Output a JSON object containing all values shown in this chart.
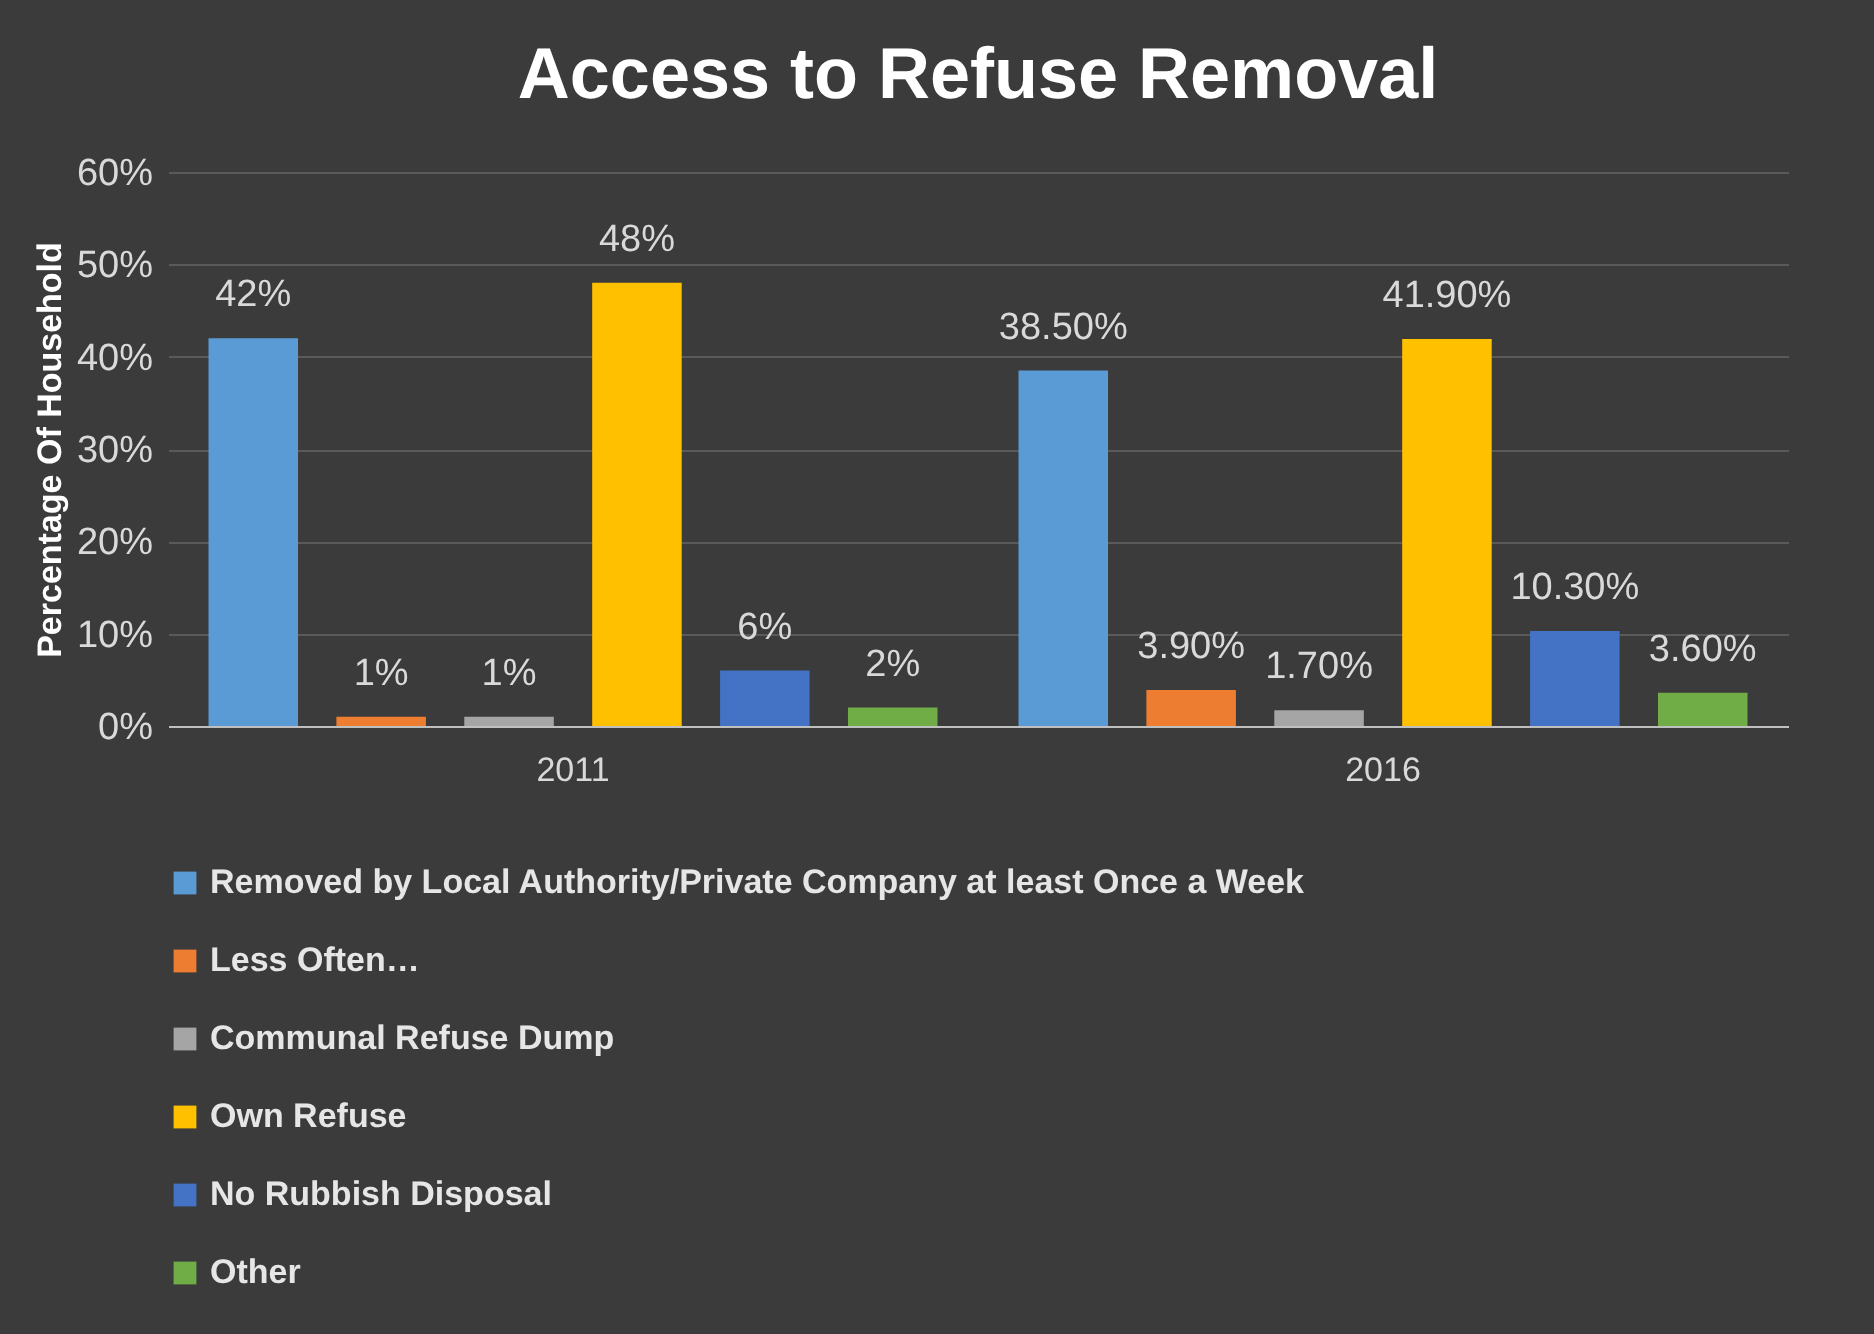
{
  "chart_data": {
    "type": "bar",
    "title": "Access to Refuse Removal",
    "ylabel": "Percentage Of Household",
    "categories": [
      "2011",
      "2016"
    ],
    "series": [
      {
        "name": "Removed by Local Authority/Private Company at least Once a Week",
        "color": "#5b9bd5",
        "values": [
          42,
          38.5
        ],
        "value_labels": [
          "42%",
          "38.50%"
        ]
      },
      {
        "name": "Less Often…",
        "color": "#ed7d31",
        "values": [
          1,
          3.9
        ],
        "value_labels": [
          "1%",
          "3.90%"
        ]
      },
      {
        "name": "Communal Refuse Dump",
        "color": "#a5a5a5",
        "values": [
          1,
          1.7
        ],
        "value_labels": [
          "1%",
          "1.70%"
        ]
      },
      {
        "name": "Own Refuse",
        "color": "#ffc000",
        "values": [
          48,
          41.9
        ],
        "value_labels": [
          "48%",
          "41.90%"
        ]
      },
      {
        "name": "No Rubbish Disposal",
        "color": "#4472c4",
        "values": [
          6,
          10.3
        ],
        "value_labels": [
          "6%",
          "10.30%"
        ]
      },
      {
        "name": "Other",
        "color": "#70ad47",
        "values": [
          2,
          3.6
        ],
        "value_labels": [
          "2%",
          "3.60%"
        ]
      }
    ],
    "ylim": [
      0,
      60
    ],
    "yticks": [
      {
        "value": 0,
        "label": "0%"
      },
      {
        "value": 10,
        "label": "10%"
      },
      {
        "value": 20,
        "label": "20%"
      },
      {
        "value": 30,
        "label": "30%"
      },
      {
        "value": 40,
        "label": "40%"
      },
      {
        "value": 50,
        "label": "50%"
      },
      {
        "value": 60,
        "label": "60%"
      }
    ],
    "grid": "y",
    "legend": "bottom"
  }
}
